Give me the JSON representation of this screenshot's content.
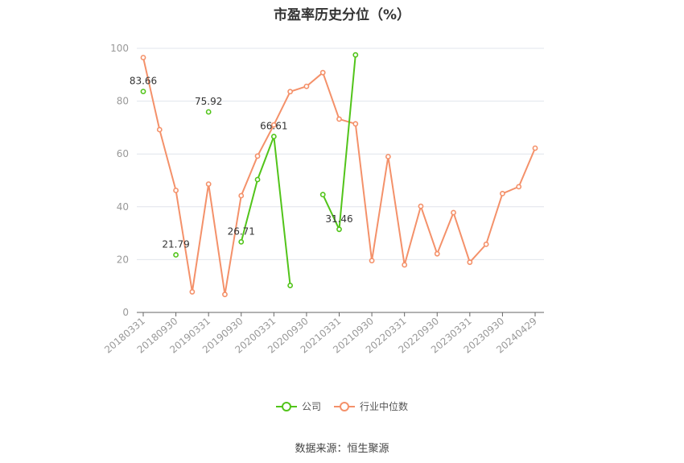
{
  "chart_data": {
    "type": "line",
    "title": "市盈率历史分位（%）",
    "xlabel": "",
    "ylabel": "",
    "ylim": [
      0,
      100
    ],
    "yticks": [
      0,
      20,
      40,
      60,
      80,
      100
    ],
    "grid": true,
    "legend_position": "bottom",
    "x_tick_labels": [
      "20180331",
      "20180930",
      "20190331",
      "20190930",
      "20200331",
      "20200930",
      "20210331",
      "20210930",
      "20220331",
      "20220930",
      "20230331",
      "20230930",
      "20240429"
    ],
    "x": [
      "20180331",
      "20180630",
      "20180930",
      "20181231",
      "20190331",
      "20190630",
      "20190930",
      "20191231",
      "20200331",
      "20200630",
      "20200930",
      "20201231",
      "20210331",
      "20210630",
      "20210930",
      "20211231",
      "20220331",
      "20220630",
      "20220930",
      "20221231",
      "20230331",
      "20230630",
      "20230930",
      "20231231",
      "20240429"
    ],
    "series": [
      {
        "name": "公司",
        "color": "#52c41a",
        "values": [
          83.66,
          null,
          21.79,
          null,
          75.92,
          null,
          26.71,
          50.3,
          66.61,
          10.2,
          null,
          44.6,
          31.46,
          97.5,
          null,
          null,
          null,
          null,
          null,
          null,
          null,
          null,
          null,
          null,
          null
        ],
        "labels": {
          "0": "83.66",
          "2": "21.79",
          "4": "75.92",
          "6": "26.71",
          "8": "66.61",
          "12": "31.46"
        }
      },
      {
        "name": "行业中位数",
        "color": "#f4916a",
        "values": [
          96.5,
          69.2,
          46.2,
          7.8,
          48.6,
          6.8,
          44.2,
          59.2,
          71.0,
          83.6,
          85.6,
          90.8,
          73.2,
          71.4,
          19.6,
          59.0,
          18.0,
          40.2,
          22.2,
          37.8,
          19.0,
          25.8,
          45.0,
          47.6,
          62.2
        ]
      }
    ]
  },
  "source": "数据来源：恒生聚源"
}
